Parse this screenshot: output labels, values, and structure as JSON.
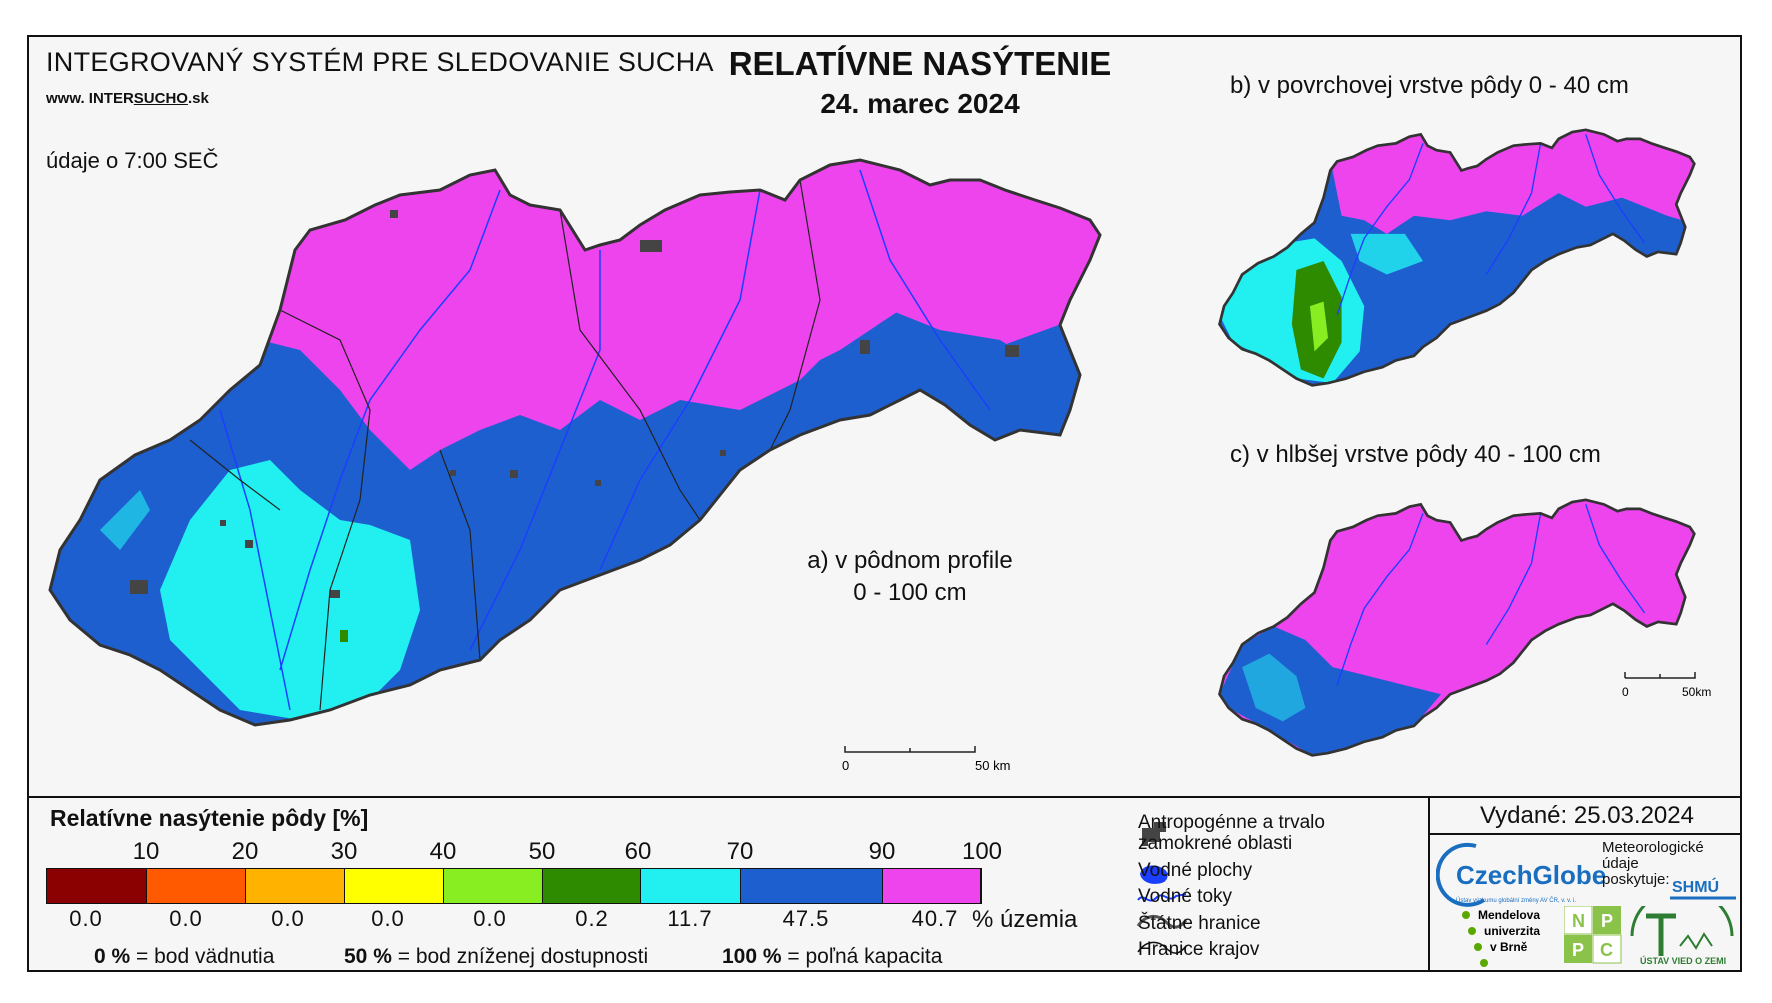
{
  "header": {
    "system_title": "INTEGROVANÝ SYSTÉM PRE SLEDOVANIE SUCHA",
    "url_prefix": "www. ",
    "url_plain": "INTER",
    "url_underlined": "SUCHO",
    "url_suffix": ".sk",
    "time_note": "údaje o 7:00 SEČ",
    "main_title": "RELATÍVNE NASÝTENIE",
    "date": "24. marec 2024"
  },
  "maps": {
    "a_line1": "a) v pôdnom profile",
    "a_line2": "0 - 100 cm",
    "b_label": "b) v povrchovej vrstve pôdy 0 - 40 cm",
    "c_label": "c) v hlbšej vrstve pôdy 40 - 100 cm",
    "scale_zero": "0",
    "scale_end": "50 km",
    "scale_end_small": "50km"
  },
  "legend": {
    "title": "Relatívne nasýtenie pôdy [%]",
    "ticks": [
      "10",
      "20",
      "30",
      "40",
      "50",
      "60",
      "70",
      "90",
      "100"
    ],
    "classes": [
      {
        "color": "#8b0000",
        "percent": "0.0"
      },
      {
        "color": "#ff5a00",
        "percent": "0.0"
      },
      {
        "color": "#ffb300",
        "percent": "0.0"
      },
      {
        "color": "#ffff00",
        "percent": "0.0"
      },
      {
        "color": "#88ee22",
        "percent": "0.0"
      },
      {
        "color": "#2e8b00",
        "percent": "0.2"
      },
      {
        "color": "#22f0f0",
        "percent": "11.7"
      },
      {
        "color": "#1e5fd0",
        "percent": "47.5"
      },
      {
        "color": "#ee44ee",
        "percent": "40.7"
      }
    ],
    "pct_unit": "% územia",
    "def1_value": "0 %",
    "def1_text": "= bod vädnutia",
    "def2_value": "50 %",
    "def2_text": "= bod zníženej dostupnosti",
    "def3_value": "100 %",
    "def3_text": "= poľná kapacita"
  },
  "key": {
    "anthropogenic_line1": "Antropogénne a trvalo",
    "anthropogenic_line2": "zamokrené oblasti",
    "water_bodies": "Vodné plochy",
    "water_streams": "Vodné toky",
    "state_border": "Štátne hranice",
    "region_border": "Hranice krajov"
  },
  "issue": {
    "issued": "Vydané: 25.03.2024",
    "czechglobe": "CzechGlobe",
    "czechglobe_sub": "Ústav výzkumu globální změny AV ČR, v. v. i.",
    "meteo_line1": "Meteorologické",
    "meteo_line2": "údaje",
    "meteo_line3": "poskytuje:",
    "shmu": "SHMÚ",
    "mendel_line1": "Mendelova",
    "mendel_line2": "univerzita",
    "mendel_line3": "v Brně",
    "nppc": [
      "N",
      "P",
      "P",
      "C"
    ],
    "uvz": "ÚSTAV VIED O ZEMI"
  },
  "colors": {
    "magenta": "#ee44ee",
    "blue": "#1e5fd0",
    "cyan": "#22f0f0",
    "green": "#2e8b00",
    "river": "#1a3fff"
  }
}
